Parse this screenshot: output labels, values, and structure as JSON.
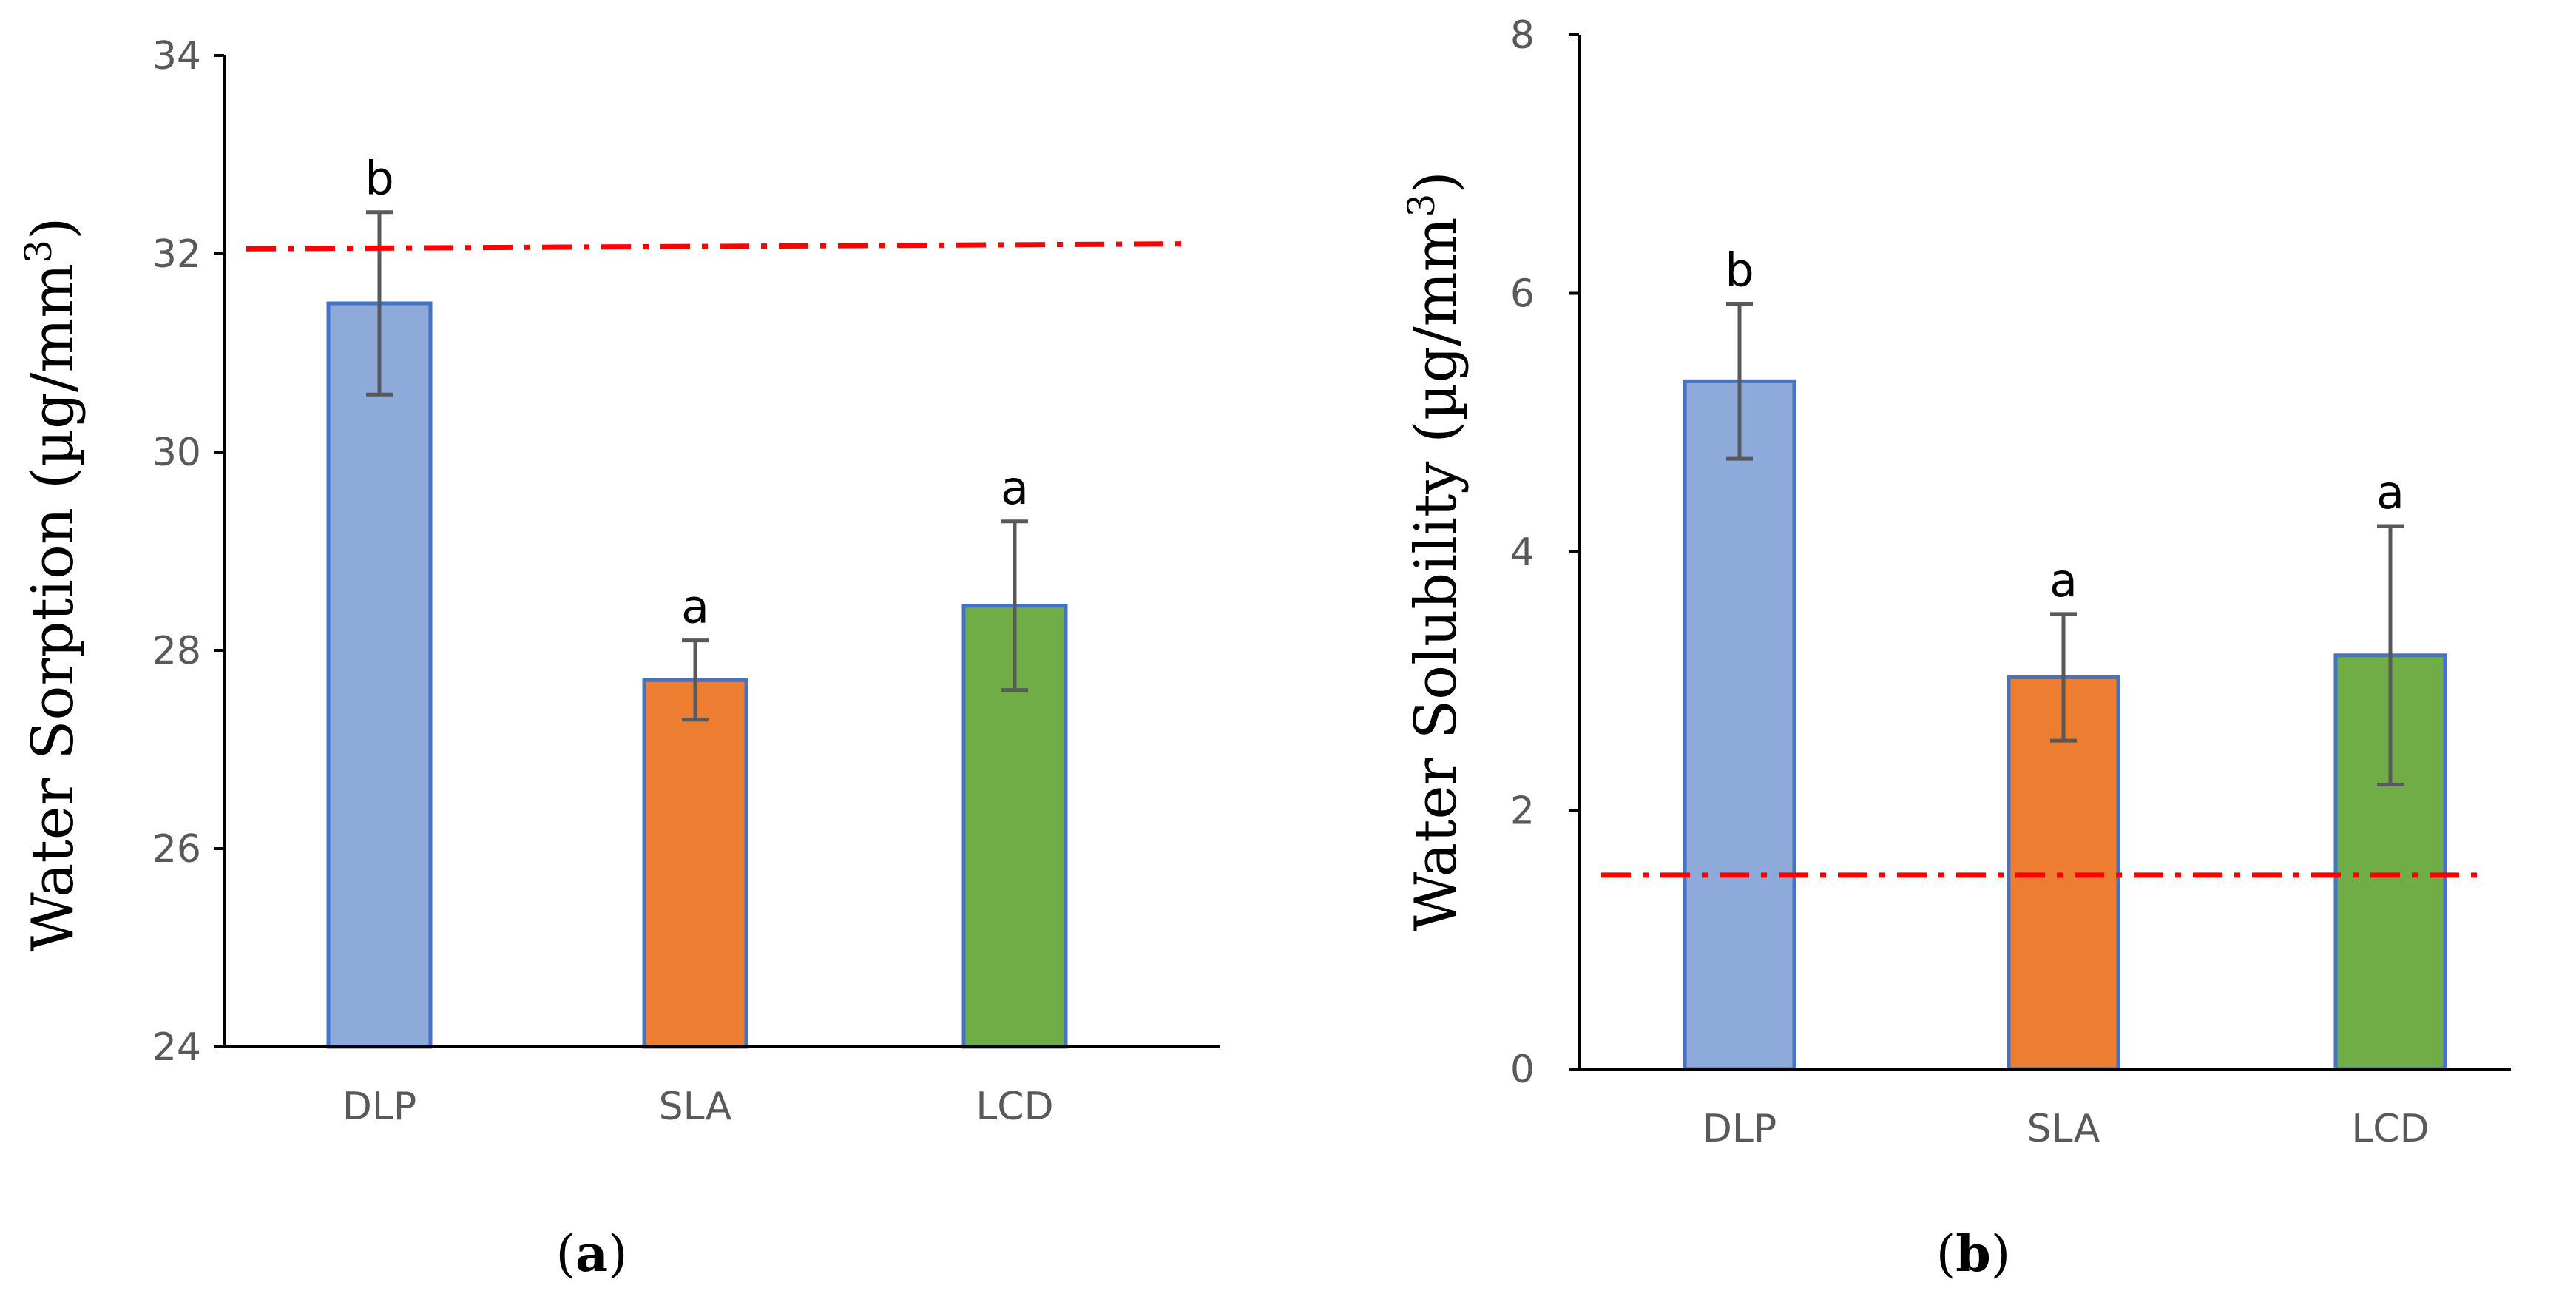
{
  "chart_data": [
    {
      "type": "bar",
      "panel_label": "a",
      "ylabel": "Water Sorption (µg/mm",
      "ylabel_sup": "3",
      "ylabel_close": ")",
      "categories": [
        "DLP",
        "SLA",
        "LCD"
      ],
      "values": [
        31.5,
        27.7,
        28.45
      ],
      "errors": [
        0.92,
        0.4,
        0.85
      ],
      "significance": [
        "b",
        "a",
        "a"
      ],
      "colors": [
        "#8eaadb",
        "#ed7d31",
        "#70ad47"
      ],
      "bar_edge_color": "#4472c4",
      "ylim": [
        24,
        34
      ],
      "yticks": [
        "24",
        "26",
        "28",
        "30",
        "32",
        "34"
      ],
      "reference_line": {
        "y_start": 32.05,
        "y_end": 32.1,
        "color": "#ff0000",
        "style": "dash-dot"
      },
      "grid": false
    },
    {
      "type": "bar",
      "panel_label": "b",
      "ylabel": "Water Solubility (µg/mm",
      "ylabel_sup": "3",
      "ylabel_close": ")",
      "categories": [
        "DLP",
        "SLA",
        "LCD"
      ],
      "values": [
        5.32,
        3.03,
        3.2
      ],
      "errors": [
        0.6,
        0.49,
        1.0
      ],
      "significance": [
        "b",
        "a",
        "a"
      ],
      "colors": [
        "#8eaadb",
        "#ed7d31",
        "#70ad47"
      ],
      "bar_edge_color": "#4472c4",
      "ylim": [
        0,
        8
      ],
      "yticks": [
        "0",
        "2",
        "4",
        "6",
        "8"
      ],
      "reference_line": {
        "y_start": 1.5,
        "y_end": 1.5,
        "color": "#ff0000",
        "style": "dash-dot"
      },
      "grid": false
    }
  ]
}
